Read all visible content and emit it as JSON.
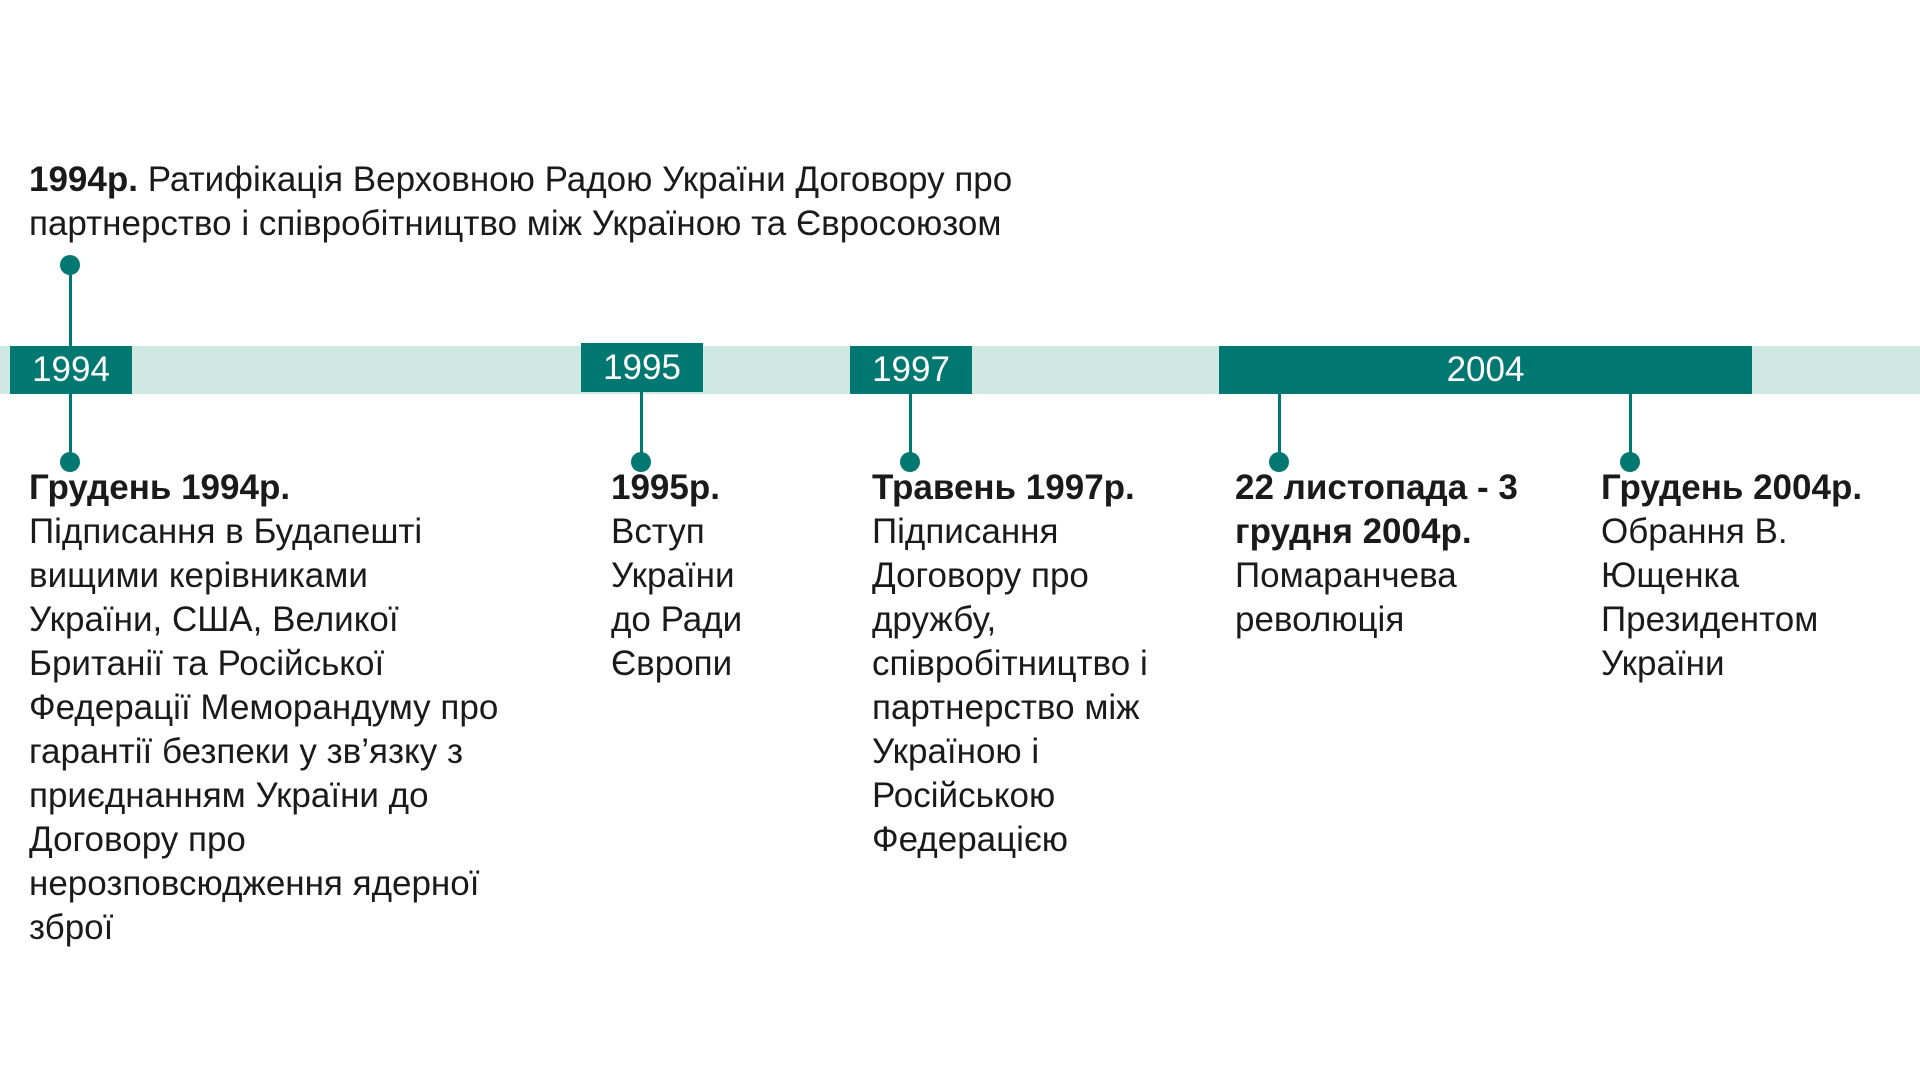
{
  "top_event": {
    "date": "1994р.",
    "text": "Ратифікація Верховною Радою України Договору про партнерство і співробітництво між Україною та Євросоюзом"
  },
  "years": [
    "1994",
    "1995",
    "1997",
    "2004"
  ],
  "events": [
    {
      "title": "Грудень 1994р.",
      "desc": "Підписання в Будапешті вищими керівниками України, США, Великої Британії та Російської Федерації Меморандуму про гарантії безпеки у зв’язку з приєднанням України до Договору про нерозповсюдження ядерної зброї"
    },
    {
      "title": "1995р.",
      "desc": "Вступ України до Ради Європи"
    },
    {
      "title": "Травень 1997р.",
      "desc": "Підписання Договору про дружбу, співробітництво і партнерство між Україною і Російською Федерацією"
    },
    {
      "title": "22 листопада - 3 грудня 2004р.",
      "desc": "Помаранчева революція"
    },
    {
      "title": "Грудень 2004р.",
      "desc": "Обрання В. Ющенка Президентом України"
    }
  ],
  "colors": {
    "accent": "#007872",
    "track": "#cfe9e2",
    "text": "#1a1a1a"
  }
}
